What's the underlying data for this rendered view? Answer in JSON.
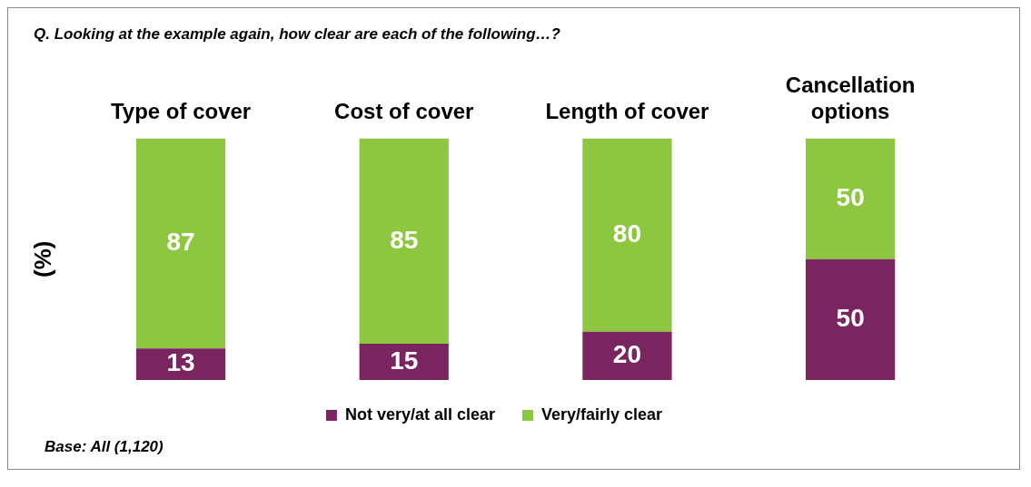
{
  "chart_data": {
    "type": "bar",
    "title": "Q. Looking at the example again, how clear are each of the following…?",
    "ylabel": "(%)",
    "categories": [
      "Type of cover",
      "Cost of cover",
      "Length of cover",
      "Cancellation options"
    ],
    "stacked": true,
    "series": [
      {
        "name": "Not very/at all clear",
        "color": "#7b2560",
        "values": [
          13,
          15,
          20,
          50
        ]
      },
      {
        "name": "Very/fairly clear",
        "color": "#8dc63f",
        "values": [
          87,
          85,
          80,
          50
        ]
      }
    ],
    "data_labels": true,
    "legend": "bottom",
    "grid": false,
    "annotations": [
      "Base: All (1,120)"
    ]
  }
}
